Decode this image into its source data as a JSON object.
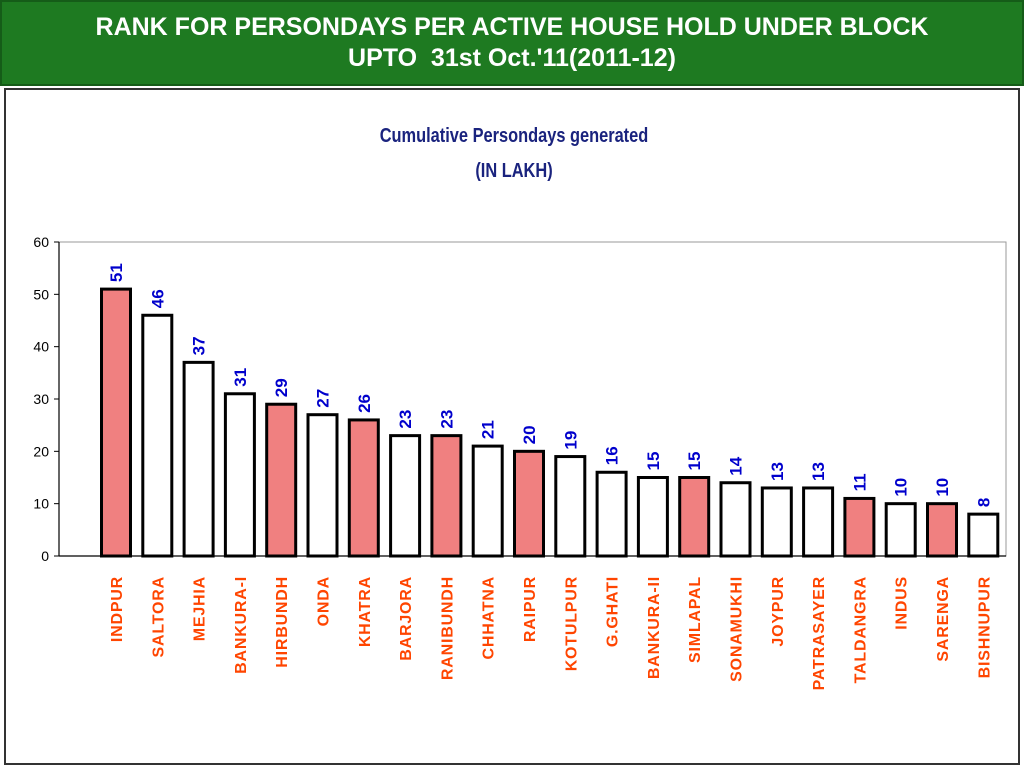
{
  "slide": {
    "title_line1": "RANK FOR PERSONDAYS PER ACTIVE HOUSE HOLD UNDER BLOCK",
    "title_line2": "UPTO  31st Oct.'11(2011-12)"
  },
  "colors": {
    "header_bg": "#1e7a21",
    "header_text": "#ffffff",
    "chart_title": "#1a237e",
    "value_label": "#0000cc",
    "category_label": "#ff4500",
    "highlight_bar": "#f08080",
    "plain_bar": "#ffffff",
    "bar_border": "#000000"
  },
  "chart_data": {
    "type": "bar",
    "title": "Cumulative Persondays generated",
    "subtitle": "(IN LAKH)",
    "xlabel": "",
    "ylabel": "",
    "ylim": [
      0,
      60
    ],
    "yticks": [
      "0",
      "10",
      "20",
      "30",
      "40",
      "50",
      "60"
    ],
    "grid": false,
    "legend": "none",
    "categories": [
      "INDPUR",
      "SALTORA",
      "MEJHIA",
      "BANKURA-I",
      "HIRBUNDH",
      "ONDA",
      "KHATRA",
      "BARJORA",
      "RANIBUNDH",
      "CHHATNA",
      "RAIPUR",
      "KOTULPUR",
      "G.GHATI",
      "BANKURA-II",
      "SIMLAPAL",
      "SONAMUKHI",
      "JOYPUR",
      "PATRASAYER",
      "TALDANGRA",
      "INDUS",
      "SARENGA",
      "BISHNUPUR"
    ],
    "values": [
      51,
      46,
      37,
      31,
      29,
      27,
      26,
      23,
      23,
      21,
      20,
      19,
      16,
      15,
      15,
      14,
      13,
      13,
      11,
      10,
      10,
      8
    ],
    "highlighted": [
      true,
      false,
      false,
      false,
      true,
      false,
      true,
      false,
      true,
      false,
      true,
      false,
      false,
      false,
      true,
      false,
      false,
      false,
      true,
      false,
      true,
      false
    ]
  }
}
